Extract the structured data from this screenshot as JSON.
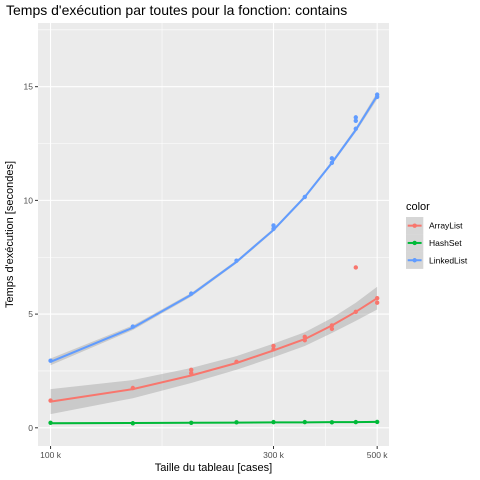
{
  "chart_data": {
    "type": "scatter",
    "title": "Temps d'exécution par toutes pour la fonction: contains",
    "xlabel": "Taille du tableau [cases]",
    "ylabel": "Temps d'exécution [secondes]",
    "xscale": "log10",
    "xlim": [
      94000,
      530000
    ],
    "ylim": [
      -0.8,
      17.8
    ],
    "xticks": [
      100000,
      300000,
      500000
    ],
    "xtick_labels": [
      "100 k",
      "300 k",
      "500 k"
    ],
    "yticks": [
      0,
      5,
      10,
      15
    ],
    "ytick_labels": [
      "0",
      "5",
      "10",
      "15"
    ],
    "grid": true,
    "legend": {
      "title": "color",
      "position": "right"
    },
    "series": [
      {
        "name": "ArrayList",
        "color": "#F8766D",
        "x": [
          100000,
          150000,
          200000,
          200000,
          250000,
          300000,
          300000,
          350000,
          350000,
          400000,
          400000,
          450000,
          450000,
          500000,
          500000
        ],
        "y": [
          1.2,
          1.75,
          2.4,
          2.55,
          2.9,
          3.45,
          3.6,
          3.85,
          4.0,
          4.35,
          4.5,
          5.1,
          7.05,
          5.5,
          5.7
        ],
        "fit": {
          "x": [
            100000,
            150000,
            200000,
            250000,
            300000,
            350000,
            400000,
            450000,
            500000
          ],
          "y": [
            1.15,
            1.7,
            2.3,
            2.85,
            3.4,
            3.9,
            4.5,
            5.1,
            5.7
          ]
        },
        "ci_halfwidth": [
          0.55,
          0.4,
          0.33,
          0.3,
          0.3,
          0.3,
          0.33,
          0.4,
          0.5
        ]
      },
      {
        "name": "HashSet",
        "color": "#00BA38",
        "x": [
          100000,
          150000,
          200000,
          250000,
          300000,
          350000,
          400000,
          450000,
          500000
        ],
        "y": [
          0.22,
          0.2,
          0.22,
          0.24,
          0.25,
          0.25,
          0.24,
          0.25,
          0.26
        ],
        "fit": {
          "x": [
            100000,
            150000,
            200000,
            250000,
            300000,
            350000,
            400000,
            450000,
            500000
          ],
          "y": [
            0.2,
            0.21,
            0.22,
            0.23,
            0.24,
            0.24,
            0.25,
            0.25,
            0.26
          ]
        },
        "ci_halfwidth": [
          0.05,
          0.04,
          0.03,
          0.03,
          0.03,
          0.03,
          0.03,
          0.04,
          0.05
        ]
      },
      {
        "name": "LinkedList",
        "color": "#619CFF",
        "x": [
          100000,
          150000,
          200000,
          250000,
          300000,
          300000,
          350000,
          400000,
          400000,
          450000,
          450000,
          450000,
          500000,
          500000
        ],
        "y": [
          2.95,
          4.45,
          5.9,
          7.35,
          8.75,
          8.9,
          10.15,
          11.65,
          11.85,
          13.15,
          13.5,
          13.65,
          14.55,
          14.65
        ],
        "fit": {
          "x": [
            100000,
            150000,
            200000,
            250000,
            300000,
            350000,
            400000,
            450000,
            500000
          ],
          "y": [
            2.9,
            4.4,
            5.85,
            7.3,
            8.7,
            10.15,
            11.65,
            13.1,
            14.6
          ]
        },
        "ci_halfwidth": [
          0.15,
          0.1,
          0.08,
          0.07,
          0.07,
          0.07,
          0.08,
          0.1,
          0.15
        ]
      }
    ]
  }
}
